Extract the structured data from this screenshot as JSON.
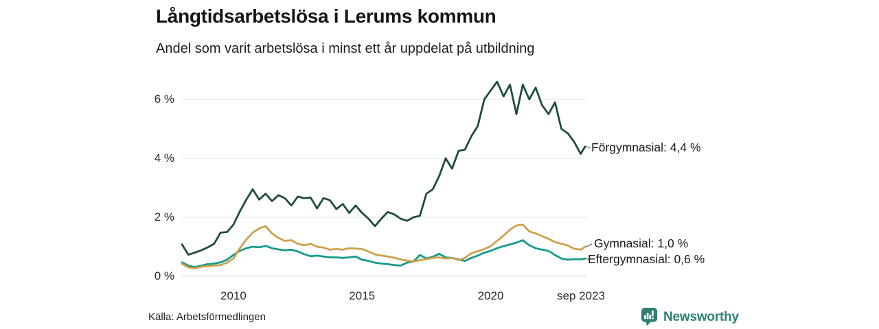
{
  "chart_data": {
    "type": "line",
    "title": "Långtidsarbetslösa i Lerums kommun",
    "subtitle": "Andel som varit arbetslösa i minst ett år uppdelat på utbildning",
    "x_unit": "decimal_year",
    "xlim": [
      2008,
      2023.67
    ],
    "ylim": [
      0,
      6.8
    ],
    "grid": "horizontal",
    "grid_color": "#e3e3e3",
    "legend_position": "end-of-line-labels",
    "x": [
      2008,
      2008.25,
      2008.5,
      2008.75,
      2009,
      2009.25,
      2009.5,
      2009.75,
      2010,
      2010.25,
      2010.5,
      2010.75,
      2011,
      2011.25,
      2011.5,
      2011.75,
      2012,
      2012.25,
      2012.5,
      2012.75,
      2013,
      2013.25,
      2013.5,
      2013.75,
      2014,
      2014.25,
      2014.5,
      2014.75,
      2015,
      2015.25,
      2015.5,
      2015.75,
      2016,
      2016.25,
      2016.5,
      2016.75,
      2017,
      2017.25,
      2017.5,
      2017.75,
      2018,
      2018.25,
      2018.5,
      2018.75,
      2019,
      2019.25,
      2019.5,
      2019.75,
      2020,
      2020.25,
      2020.5,
      2020.75,
      2021,
      2021.25,
      2021.5,
      2021.75,
      2022,
      2022.25,
      2022.5,
      2022.75,
      2023,
      2023.25,
      2023.5,
      2023.67
    ],
    "series": [
      {
        "name": "Förgymnasial",
        "end_label": "Förgymnasial: 4,4 %",
        "end_value": "4,4 %",
        "color": "#1f4c3f",
        "values": [
          1.08,
          0.73,
          0.8,
          0.88,
          0.98,
          1.1,
          1.48,
          1.5,
          1.75,
          2.2,
          2.6,
          2.95,
          2.6,
          2.8,
          2.55,
          2.75,
          2.65,
          2.4,
          2.7,
          2.65,
          2.67,
          2.3,
          2.65,
          2.58,
          2.28,
          2.45,
          2.15,
          2.4,
          2.15,
          1.95,
          1.7,
          1.95,
          2.18,
          2.1,
          1.95,
          1.88,
          2.0,
          2.05,
          2.8,
          2.95,
          3.4,
          4.0,
          3.65,
          4.25,
          4.3,
          4.75,
          5.1,
          6.0,
          6.3,
          6.6,
          6.1,
          6.5,
          5.5,
          6.5,
          6.0,
          6.4,
          5.8,
          5.5,
          5.9,
          5.0,
          4.85,
          4.55,
          4.15,
          4.4
        ]
      },
      {
        "name": "Gymnasial",
        "end_label": "Gymnasial: 1,0 %",
        "end_value": "1,0 %",
        "color": "#cda04a",
        "values": [
          0.42,
          0.3,
          0.27,
          0.32,
          0.34,
          0.36,
          0.38,
          0.46,
          0.6,
          0.95,
          1.25,
          1.48,
          1.62,
          1.7,
          1.45,
          1.3,
          1.2,
          1.22,
          1.1,
          1.05,
          1.1,
          1.0,
          0.97,
          0.9,
          0.92,
          0.9,
          0.95,
          0.94,
          0.92,
          0.84,
          0.74,
          0.7,
          0.67,
          0.63,
          0.57,
          0.53,
          0.5,
          0.55,
          0.58,
          0.62,
          0.64,
          0.6,
          0.62,
          0.55,
          0.62,
          0.78,
          0.85,
          0.92,
          1.02,
          1.2,
          1.38,
          1.58,
          1.72,
          1.75,
          1.52,
          1.45,
          1.36,
          1.27,
          1.16,
          1.1,
          1.04,
          0.93,
          0.9,
          1.0
        ]
      },
      {
        "name": "Eftergymnasial",
        "end_label": "Eftergymnasial: 0,6 %",
        "end_value": "0,6 %",
        "color": "#159b8a",
        "values": [
          0.47,
          0.36,
          0.31,
          0.36,
          0.41,
          0.43,
          0.47,
          0.56,
          0.72,
          0.86,
          0.95,
          1.0,
          0.98,
          1.03,
          0.95,
          0.91,
          0.88,
          0.9,
          0.84,
          0.75,
          0.68,
          0.7,
          0.67,
          0.64,
          0.64,
          0.62,
          0.64,
          0.67,
          0.56,
          0.52,
          0.46,
          0.43,
          0.41,
          0.38,
          0.36,
          0.46,
          0.5,
          0.72,
          0.6,
          0.66,
          0.76,
          0.64,
          0.62,
          0.57,
          0.52,
          0.62,
          0.7,
          0.8,
          0.86,
          0.95,
          1.02,
          1.08,
          1.14,
          1.22,
          1.05,
          0.95,
          0.9,
          0.86,
          0.72,
          0.6,
          0.56,
          0.58,
          0.57,
          0.6
        ]
      }
    ],
    "yticks": [
      {
        "value": 0,
        "label": "0 %"
      },
      {
        "value": 2,
        "label": "2 %"
      },
      {
        "value": 4,
        "label": "4 %"
      },
      {
        "value": 6,
        "label": "6 %"
      }
    ],
    "xticks": [
      {
        "value": 2010,
        "label": "2010"
      },
      {
        "value": 2015,
        "label": "2015"
      },
      {
        "value": 2020,
        "label": "2020"
      },
      {
        "value": 2023.67,
        "label": "sep 2023"
      }
    ]
  },
  "footer": {
    "source": "Källa: Arbetsförmedlingen",
    "brand": "Newsworthy",
    "brand_color": "#2e8077"
  }
}
